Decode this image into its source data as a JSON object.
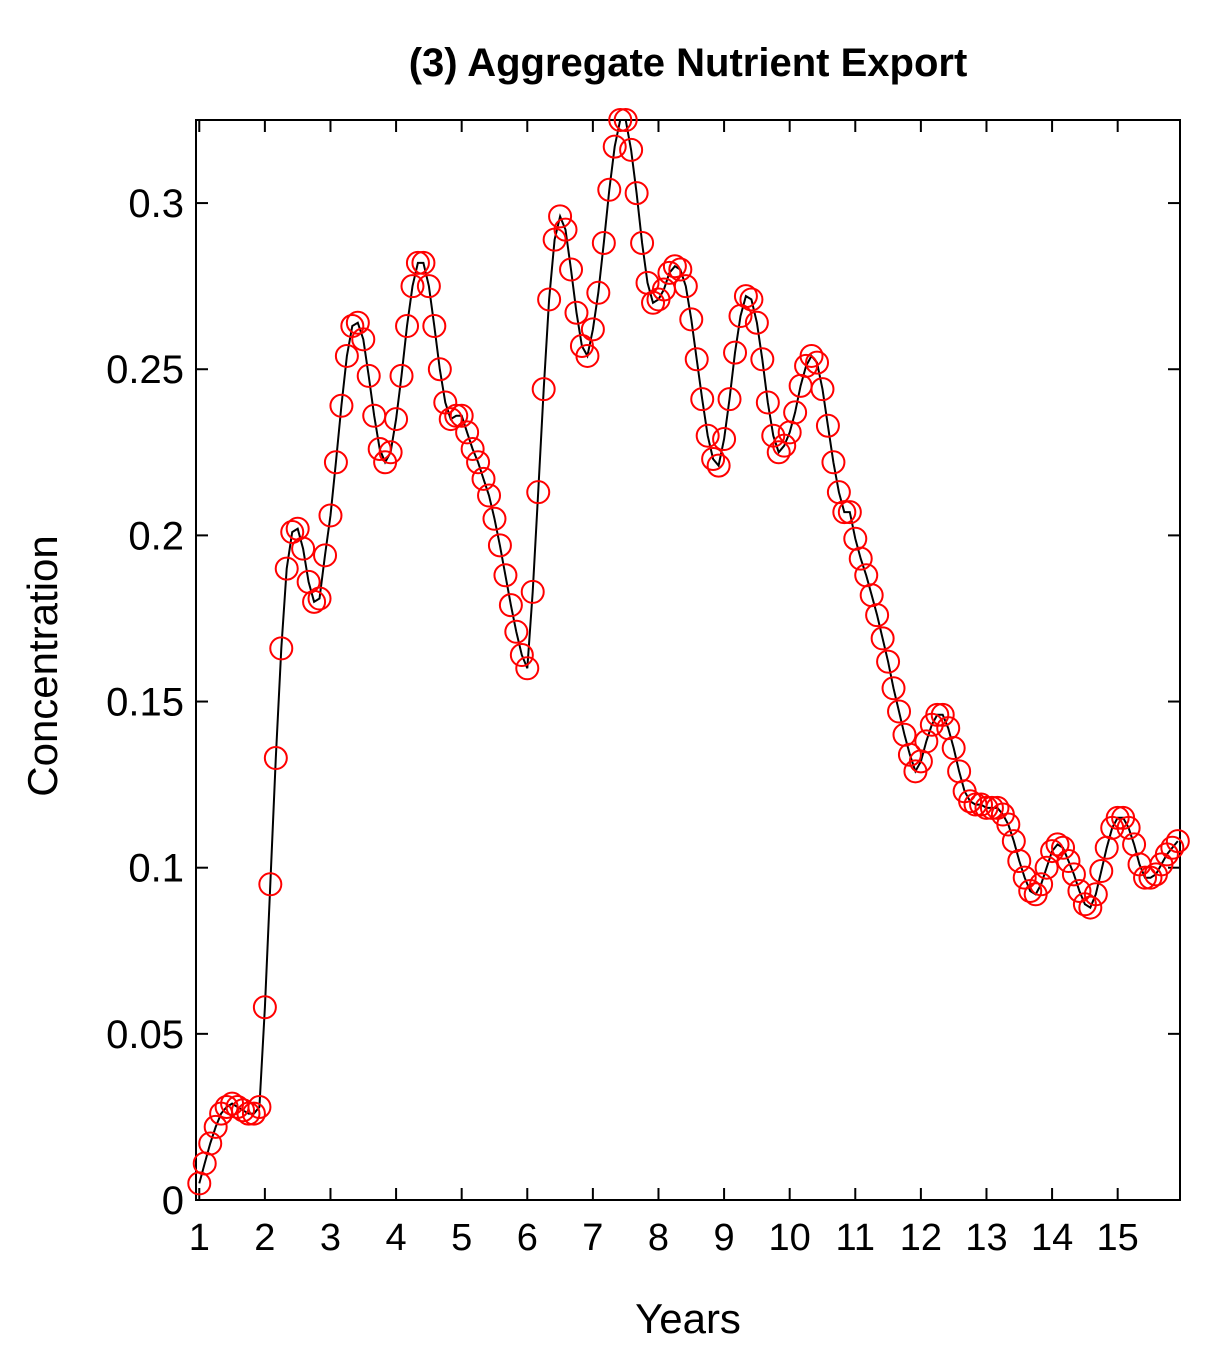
{
  "chart_data": {
    "type": "line",
    "title": "(3) Aggregate Nutrient Export",
    "xlabel": "Years",
    "ylabel": "Concentration",
    "xlim": [
      0.95,
      15.95
    ],
    "ylim": [
      0,
      0.325
    ],
    "x_ticks": [
      1,
      2,
      3,
      4,
      5,
      6,
      7,
      8,
      9,
      10,
      11,
      12,
      13,
      14,
      15
    ],
    "x_tick_labels": [
      "1",
      "2",
      "3",
      "4",
      "5",
      "6",
      "7",
      "8",
      "9",
      "10",
      "11",
      "12",
      "13",
      "14",
      "15"
    ],
    "y_ticks": [
      0,
      0.05,
      0.1,
      0.15,
      0.2,
      0.25,
      0.3
    ],
    "y_tick_labels": [
      "0",
      "0.05",
      "0.1",
      "0.15",
      "0.2",
      "0.25",
      "0.3"
    ],
    "grid": false,
    "line_color": "#000000",
    "marker_color": "#ff0000",
    "marker": "open-circle",
    "series": [
      {
        "x": [
          1.0,
          1.083,
          1.167,
          1.25,
          1.333,
          1.417,
          1.5,
          1.583,
          1.667,
          1.75,
          1.833,
          1.917,
          2.0,
          2.083,
          2.167,
          2.25,
          2.333,
          2.417,
          2.5,
          2.583,
          2.667,
          2.75,
          2.833,
          2.917,
          3.0,
          3.083,
          3.167,
          3.25,
          3.333,
          3.417,
          3.5,
          3.583,
          3.667,
          3.75,
          3.833,
          3.917,
          4.0,
          4.083,
          4.167,
          4.25,
          4.333,
          4.417,
          4.5,
          4.583,
          4.667,
          4.75,
          4.833,
          4.917,
          5.0,
          5.083,
          5.167,
          5.25,
          5.333,
          5.417,
          5.5,
          5.583,
          5.667,
          5.75,
          5.833,
          5.917,
          6.0,
          6.083,
          6.167,
          6.25,
          6.333,
          6.417,
          6.5,
          6.583,
          6.667,
          6.75,
          6.833,
          6.917,
          7.0,
          7.083,
          7.167,
          7.25,
          7.333,
          7.417,
          7.5,
          7.583,
          7.667,
          7.75,
          7.833,
          7.917,
          8.0,
          8.083,
          8.167,
          8.25,
          8.333,
          8.417,
          8.5,
          8.583,
          8.667,
          8.75,
          8.833,
          8.917,
          9.0,
          9.083,
          9.167,
          9.25,
          9.333,
          9.417,
          9.5,
          9.583,
          9.667,
          9.75,
          9.833,
          9.917,
          10.0,
          10.083,
          10.167,
          10.25,
          10.333,
          10.417,
          10.5,
          10.583,
          10.667,
          10.75,
          10.833,
          10.917,
          11.0,
          11.083,
          11.167,
          11.25,
          11.333,
          11.417,
          11.5,
          11.583,
          11.667,
          11.75,
          11.833,
          11.917,
          12.0,
          12.083,
          12.167,
          12.25,
          12.333,
          12.417,
          12.5,
          12.583,
          12.667,
          12.75,
          12.833,
          12.917,
          13.0,
          13.083,
          13.167,
          13.25,
          13.333,
          13.417,
          13.5,
          13.583,
          13.667,
          13.75,
          13.833,
          13.917,
          14.0,
          14.083,
          14.167,
          14.25,
          14.333,
          14.417,
          14.5,
          14.583,
          14.667,
          14.75,
          14.833,
          14.917,
          15.0,
          15.083,
          15.167,
          15.25,
          15.333,
          15.417,
          15.5,
          15.583,
          15.667,
          15.75,
          15.833,
          15.917
        ],
        "y": [
          0.005,
          0.011,
          0.017,
          0.022,
          0.026,
          0.028,
          0.029,
          0.028,
          0.027,
          0.026,
          0.026,
          0.028,
          0.058,
          0.095,
          0.133,
          0.166,
          0.19,
          0.201,
          0.202,
          0.196,
          0.186,
          0.18,
          0.181,
          0.194,
          0.206,
          0.222,
          0.239,
          0.254,
          0.263,
          0.264,
          0.259,
          0.248,
          0.236,
          0.226,
          0.222,
          0.225,
          0.235,
          0.248,
          0.263,
          0.275,
          0.282,
          0.282,
          0.275,
          0.263,
          0.25,
          0.24,
          0.235,
          0.236,
          0.236,
          0.231,
          0.226,
          0.222,
          0.217,
          0.212,
          0.205,
          0.197,
          0.188,
          0.179,
          0.171,
          0.164,
          0.16,
          0.183,
          0.213,
          0.244,
          0.271,
          0.289,
          0.296,
          0.292,
          0.28,
          0.267,
          0.257,
          0.254,
          0.262,
          0.273,
          0.288,
          0.304,
          0.317,
          0.325,
          0.325,
          0.316,
          0.303,
          0.288,
          0.276,
          0.27,
          0.271,
          0.274,
          0.279,
          0.281,
          0.28,
          0.275,
          0.265,
          0.253,
          0.241,
          0.23,
          0.223,
          0.221,
          0.229,
          0.241,
          0.255,
          0.266,
          0.272,
          0.271,
          0.264,
          0.253,
          0.24,
          0.23,
          0.225,
          0.227,
          0.231,
          0.237,
          0.245,
          0.251,
          0.254,
          0.252,
          0.244,
          0.233,
          0.222,
          0.213,
          0.207,
          0.207,
          0.199,
          0.193,
          0.188,
          0.182,
          0.176,
          0.169,
          0.162,
          0.154,
          0.147,
          0.14,
          0.134,
          0.129,
          0.132,
          0.138,
          0.143,
          0.146,
          0.146,
          0.142,
          0.136,
          0.129,
          0.123,
          0.12,
          0.119,
          0.119,
          0.118,
          0.118,
          0.118,
          0.116,
          0.113,
          0.108,
          0.102,
          0.097,
          0.093,
          0.092,
          0.095,
          0.1,
          0.105,
          0.107,
          0.106,
          0.102,
          0.098,
          0.093,
          0.089,
          0.088,
          0.092,
          0.099,
          0.106,
          0.112,
          0.115,
          0.115,
          0.112,
          0.107,
          0.101,
          0.097,
          0.097,
          0.098,
          0.101,
          0.104,
          0.106,
          0.108
        ]
      }
    ]
  }
}
